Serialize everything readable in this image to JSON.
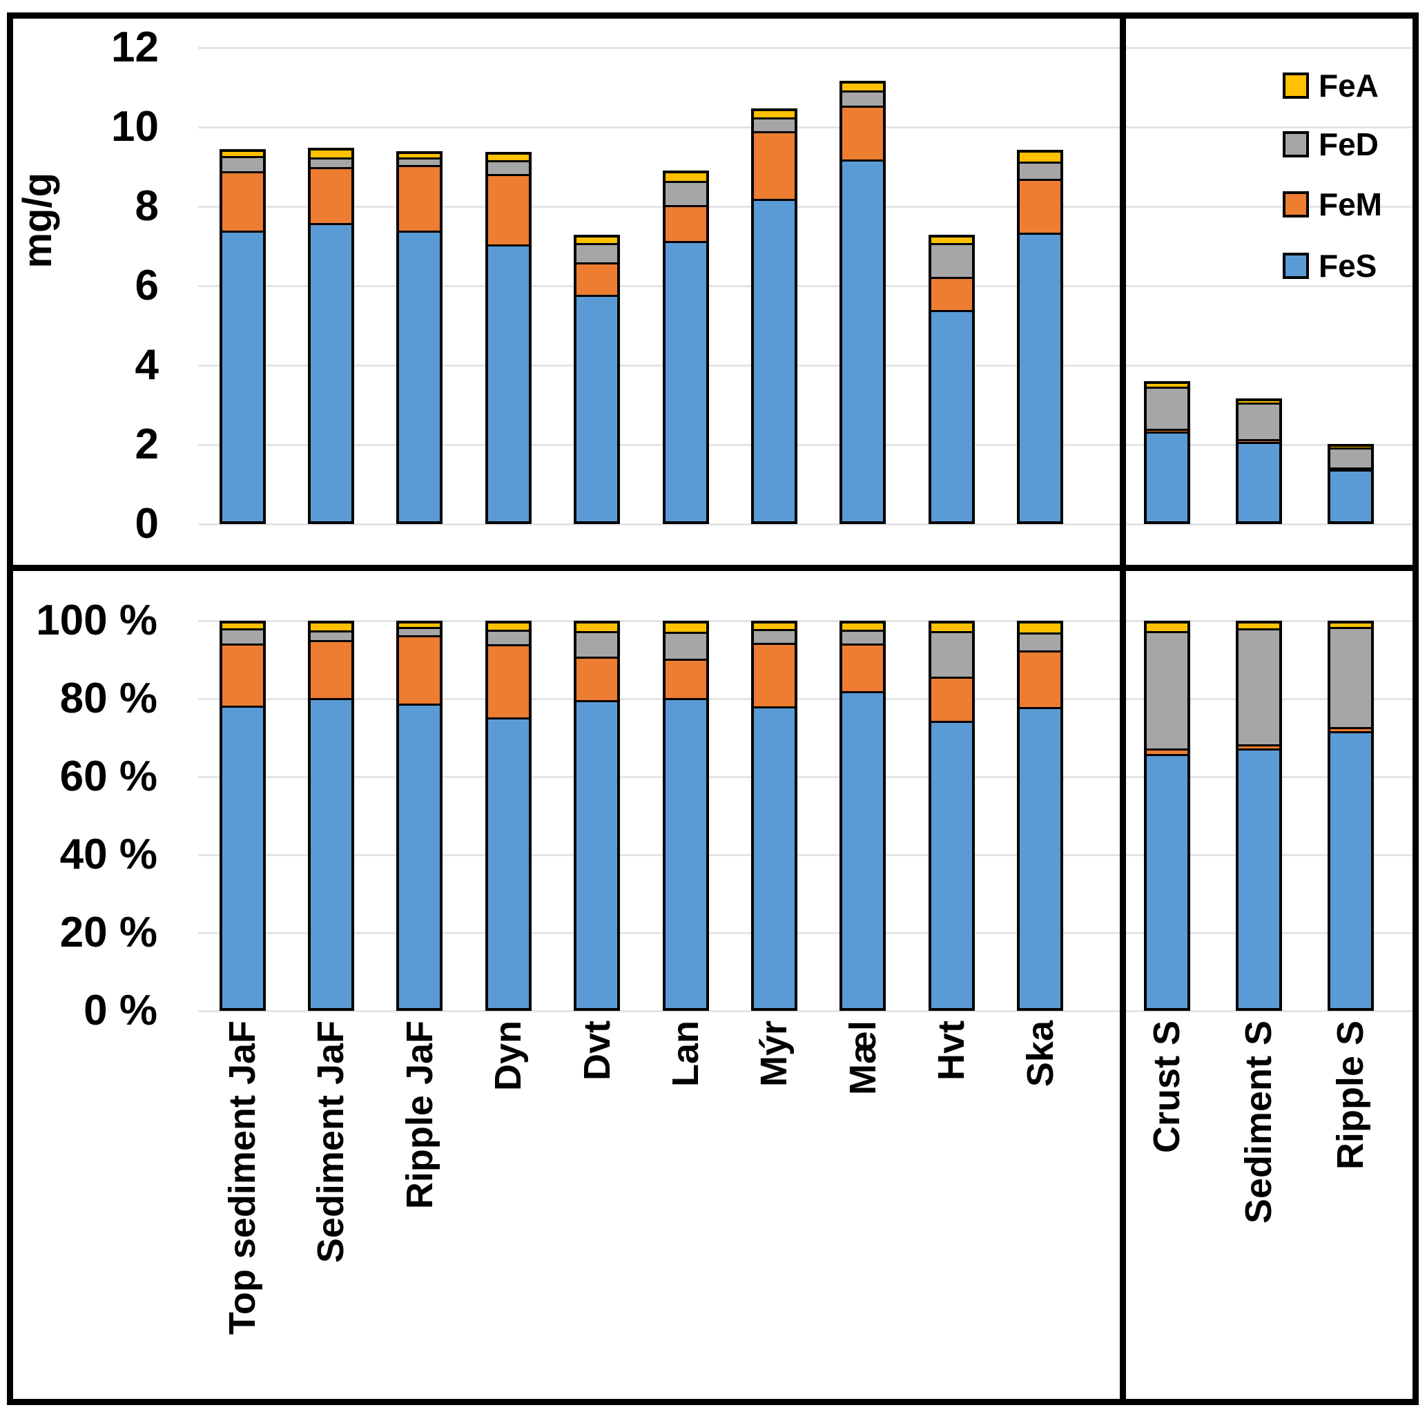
{
  "chart_data": {
    "type": "bar",
    "stacked": true,
    "categories": [
      "Top sediment JaF",
      "Sediment JaF",
      "Ripple JaF",
      "Dyn",
      "Dvt",
      "Lan",
      "Mýr",
      "Mæl",
      "Hvt",
      "Ska",
      "Crust S",
      "Sediment S",
      "Ripple S"
    ],
    "panel_split_index": 10,
    "panel_note_left_count": 10,
    "panel_note_right_count": 3,
    "series": [
      {
        "name": "FeS",
        "color": "#5B9BD5",
        "values_mg_g": [
          7.5,
          7.7,
          7.5,
          7.15,
          5.9,
          7.25,
          8.3,
          9.3,
          5.5,
          7.45,
          2.4,
          2.15,
          1.46
        ]
      },
      {
        "name": "FeM",
        "color": "#ED7D31",
        "values_mg_g": [
          1.5,
          1.4,
          1.65,
          1.77,
          0.79,
          0.88,
          1.7,
          1.35,
          0.81,
          1.35,
          0.03,
          0.02,
          0.01
        ]
      },
      {
        "name": "FeD",
        "color": "#A6A6A6",
        "values_mg_g": [
          0.33,
          0.2,
          0.16,
          0.31,
          0.45,
          0.58,
          0.31,
          0.34,
          0.83,
          0.4,
          1.1,
          0.95,
          0.52
        ]
      },
      {
        "name": "FeA",
        "color": "#FFC000",
        "values_mg_g": [
          0.12,
          0.17,
          0.08,
          0.15,
          0.15,
          0.2,
          0.16,
          0.18,
          0.15,
          0.22,
          0.07,
          0.04,
          0.02
        ]
      }
    ],
    "stack_order_bottom_to_top": [
      "FeS",
      "FeM",
      "FeD",
      "FeA"
    ],
    "top_chart": {
      "ylabel": "mg/g",
      "ymin": 0,
      "ymax": 12,
      "tick_step": 2,
      "tick_labels": [
        "12",
        "10",
        "8",
        "6",
        "4",
        "2",
        "0"
      ],
      "grid": true
    },
    "bottom_chart": {
      "normalized_percent": true,
      "ymin": 0,
      "ymax": 100,
      "tick_step": 20,
      "tick_labels": [
        "100 %",
        "80 %",
        "60 %",
        "40 %",
        "20 %",
        "0 %"
      ],
      "grid": true
    },
    "legend_position": "top-right"
  },
  "legend": [
    {
      "label": "FeA",
      "color": "#FFC000"
    },
    {
      "label": "FeD",
      "color": "#A6A6A6"
    },
    {
      "label": "FeM",
      "color": "#ED7D31"
    },
    {
      "label": "FeS",
      "color": "#5B9BD5"
    }
  ]
}
